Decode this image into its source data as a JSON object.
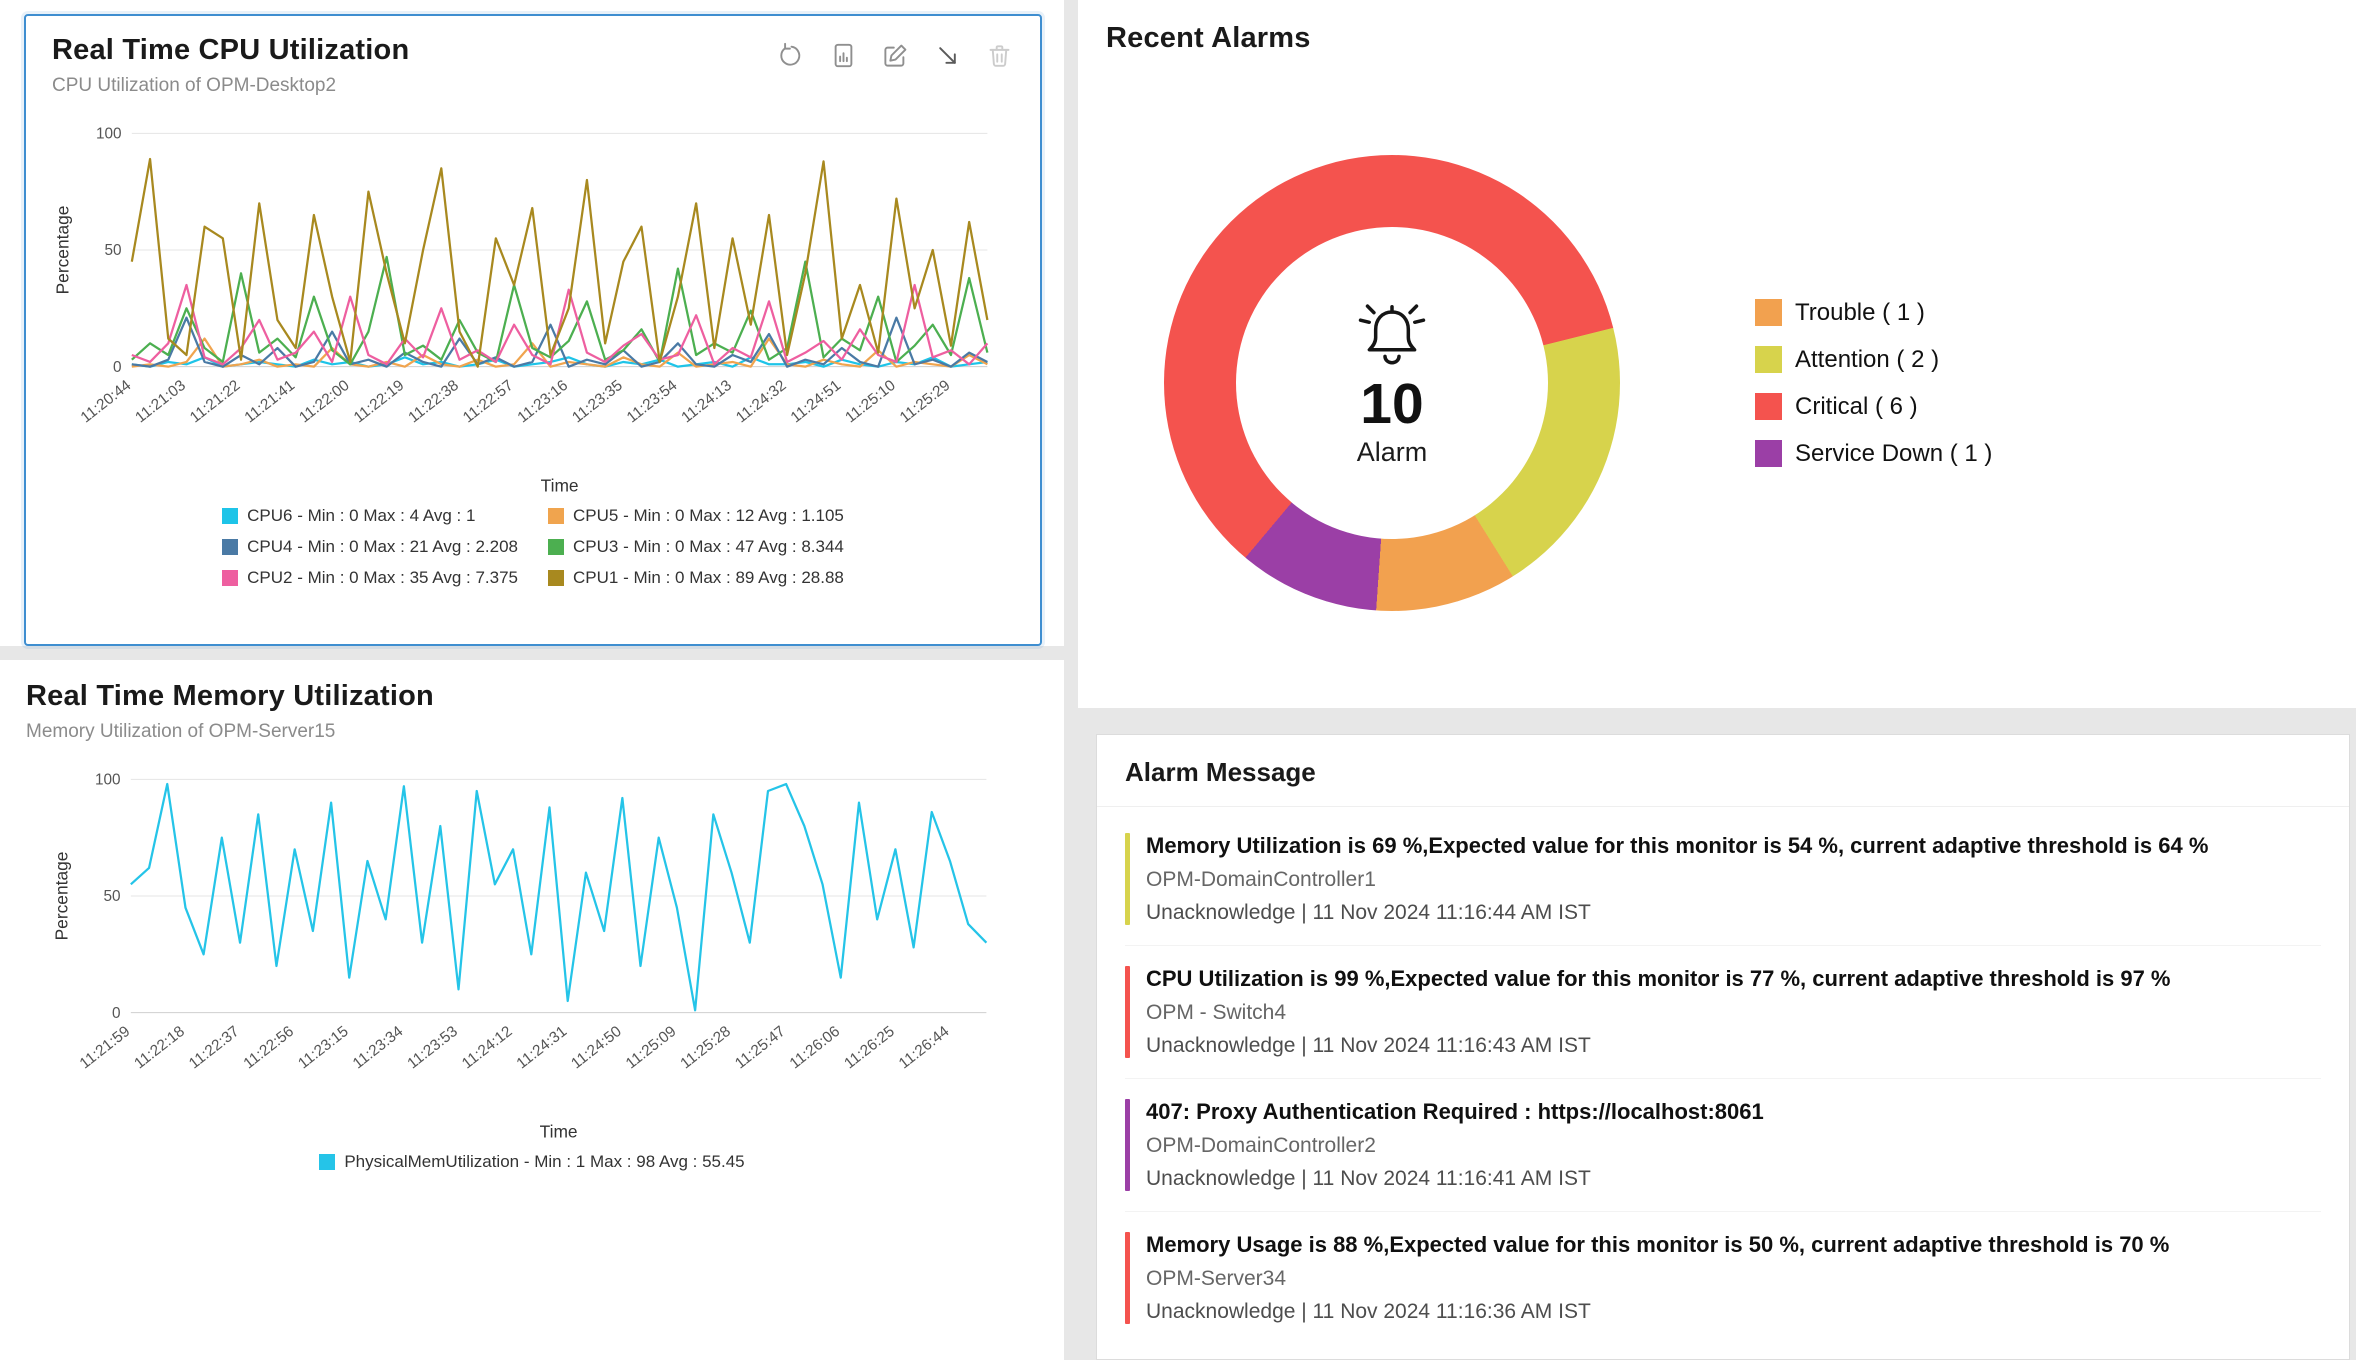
{
  "cpu_widget": {
    "title": "Real Time CPU Utilization",
    "subtitle": "CPU Utilization of OPM-Desktop2",
    "toolbar_icons": [
      "refresh-icon",
      "report-icon",
      "edit-icon",
      "resize-icon",
      "trash-icon"
    ]
  },
  "memory_widget": {
    "title": "Real Time Memory Utilization",
    "subtitle": "Memory Utilization of OPM-Server15"
  },
  "recent_alarms": {
    "title": "Recent Alarms",
    "total": "10",
    "total_label": "Alarm",
    "legend": [
      {
        "label": "Trouble ( 1 )",
        "color": "#f2a14f"
      },
      {
        "label": "Attention ( 2 )",
        "color": "#d7d34c"
      },
      {
        "label": "Critical ( 6 )",
        "color": "#f4534e"
      },
      {
        "label": "Service Down ( 1 )",
        "color": "#9b3fa6"
      }
    ]
  },
  "alarm_panel": {
    "title": "Alarm Message",
    "alarms": [
      {
        "message": "Memory Utilization is 69 %,Expected value for this monitor is 54 %, current adaptive threshold is 64 %",
        "device": "OPM-DomainController1",
        "status": "Unacknowledge | 11 Nov 2024 11:16:44 AM IST",
        "severity_color": "#d7d34c"
      },
      {
        "message": "CPU Utilization is 99 %,Expected value for this monitor is 77 %, current adaptive threshold is 97 %",
        "device": "OPM - Switch4",
        "status": "Unacknowledge | 11 Nov 2024 11:16:43 AM IST",
        "severity_color": "#f4534e"
      },
      {
        "message": "407: Proxy Authentication Required : https://localhost:8061",
        "device": "OPM-DomainController2",
        "status": "Unacknowledge | 11 Nov 2024 11:16:41 AM IST",
        "severity_color": "#9b3fa6"
      },
      {
        "message": "Memory Usage is 88 %,Expected value for this monitor is 50 %, current adaptive threshold is 70 %",
        "device": "OPM-Server34",
        "status": "Unacknowledge | 11 Nov 2024 11:16:36 AM IST",
        "severity_color": "#f4534e"
      }
    ]
  },
  "chart_data": [
    {
      "id": "cpu",
      "type": "line",
      "title": "Real Time CPU Utilization",
      "xlabel": "Time",
      "ylabel": "Percentage",
      "ylim": [
        0,
        100
      ],
      "yticks": [
        0,
        50,
        100
      ],
      "grid": true,
      "legend_position": "bottom",
      "x_ticks": [
        "11:20:44",
        "11:21:03",
        "11:21:22",
        "11:21:41",
        "11:22:00",
        "11:22:19",
        "11:22:38",
        "11:22:57",
        "11:23:16",
        "11:23:35",
        "11:23:54",
        "11:24:13",
        "11:24:32",
        "11:24:51",
        "11:25:10",
        "11:25:29"
      ],
      "series": [
        {
          "name": "CPU6",
          "label": "CPU6 - Min : 0 Max : 4 Avg : 1",
          "color": "#1ec4e8",
          "min": 0,
          "max": 4,
          "avg": 1,
          "values": [
            1,
            0,
            2,
            1,
            4,
            0,
            1,
            2,
            1,
            0,
            3,
            1,
            2,
            0,
            1,
            4,
            1,
            2,
            0,
            1,
            3,
            0,
            1,
            2,
            4,
            1,
            0,
            2,
            1,
            3,
            0,
            1,
            2,
            0,
            4,
            1,
            1,
            2,
            0,
            3,
            1,
            0,
            2,
            1,
            4,
            0,
            1,
            2
          ]
        },
        {
          "name": "CPU5",
          "label": "CPU5 - Min : 0 Max : 12 Avg : 1.105",
          "color": "#f0a44e",
          "min": 0,
          "max": 12,
          "avg": 1.105,
          "values": [
            0,
            1,
            0,
            2,
            12,
            0,
            1,
            3,
            0,
            1,
            0,
            8,
            1,
            0,
            2,
            0,
            5,
            1,
            0,
            3,
            0,
            1,
            10,
            0,
            2,
            1,
            0,
            4,
            1,
            0,
            6,
            0,
            1,
            2,
            0,
            12,
            1,
            0,
            3,
            1,
            0,
            7,
            0,
            2,
            1,
            0,
            5,
            1
          ]
        },
        {
          "name": "CPU4",
          "label": "CPU4 - Min : 0 Max : 21 Avg : 2.208",
          "color": "#4a7aa5",
          "min": 0,
          "max": 21,
          "avg": 2.208,
          "values": [
            1,
            0,
            3,
            21,
            2,
            0,
            5,
            1,
            8,
            0,
            2,
            15,
            1,
            3,
            0,
            6,
            2,
            0,
            12,
            1,
            4,
            0,
            2,
            18,
            0,
            3,
            1,
            7,
            0,
            2,
            10,
            1,
            0,
            5,
            2,
            14,
            0,
            3,
            1,
            8,
            2,
            0,
            21,
            1,
            3,
            0,
            6,
            2
          ]
        },
        {
          "name": "CPU3",
          "label": "CPU3 - Min : 0 Max : 47 Avg : 8.344",
          "color": "#4caf50",
          "min": 0,
          "max": 47,
          "avg": 8.344,
          "values": [
            3,
            10,
            5,
            25,
            8,
            2,
            40,
            6,
            12,
            4,
            30,
            7,
            1,
            15,
            47,
            5,
            9,
            3,
            20,
            6,
            2,
            35,
            8,
            4,
            11,
            28,
            3,
            7,
            16,
            2,
            42,
            5,
            10,
            6,
            24,
            3,
            8,
            45,
            4,
            12,
            7,
            30,
            2,
            9,
            18,
            5,
            38,
            6
          ]
        },
        {
          "name": "CPU2",
          "label": "CPU2 - Min : 0 Max : 35 Avg : 7.375",
          "color": "#ee5fa0",
          "min": 0,
          "max": 35,
          "avg": 7.375,
          "values": [
            5,
            2,
            10,
            35,
            4,
            1,
            8,
            20,
            3,
            6,
            15,
            2,
            30,
            5,
            1,
            12,
            4,
            25,
            3,
            7,
            2,
            18,
            5,
            1,
            33,
            6,
            2,
            9,
            14,
            3,
            5,
            22,
            1,
            8,
            4,
            28,
            2,
            6,
            11,
            3,
            16,
            5,
            2,
            35,
            4,
            7,
            1,
            10
          ]
        },
        {
          "name": "CPU1",
          "label": "CPU1 - Min : 0 Max : 89 Avg : 28.88",
          "color": "#a8891f",
          "min": 0,
          "max": 89,
          "avg": 28.88,
          "values": [
            45,
            89,
            12,
            5,
            60,
            55,
            3,
            70,
            20,
            8,
            65,
            30,
            2,
            75,
            40,
            10,
            50,
            85,
            15,
            0,
            55,
            35,
            68,
            5,
            25,
            80,
            10,
            45,
            60,
            2,
            30,
            70,
            8,
            55,
            18,
            65,
            5,
            40,
            88,
            12,
            35,
            6,
            72,
            25,
            50,
            9,
            62,
            20
          ]
        }
      ]
    },
    {
      "id": "memory",
      "type": "line",
      "title": "Real Time Memory Utilization",
      "xlabel": "Time",
      "ylabel": "Percentage",
      "ylim": [
        0,
        100
      ],
      "yticks": [
        0,
        50,
        100
      ],
      "grid": true,
      "legend_position": "bottom",
      "x_ticks": [
        "11:21:59",
        "11:22:18",
        "11:22:37",
        "11:22:56",
        "11:23:15",
        "11:23:34",
        "11:23:53",
        "11:24:12",
        "11:24:31",
        "11:24:50",
        "11:25:09",
        "11:25:28",
        "11:25:47",
        "11:26:06",
        "11:26:25",
        "11:26:44"
      ],
      "series": [
        {
          "name": "PhysicalMemUtilization",
          "label": "PhysicalMemUtilization - Min : 1 Max : 98 Avg : 55.45",
          "color": "#25c4e8",
          "min": 1,
          "max": 98,
          "avg": 55.45,
          "values": [
            55,
            62,
            98,
            45,
            25,
            75,
            30,
            85,
            20,
            70,
            35,
            90,
            15,
            65,
            40,
            97,
            30,
            80,
            10,
            95,
            55,
            70,
            25,
            88,
            5,
            60,
            35,
            92,
            20,
            75,
            45,
            1,
            85,
            60,
            30,
            95,
            98,
            80,
            55,
            15,
            90,
            40,
            70,
            28,
            86,
            65,
            38,
            30
          ]
        }
      ]
    },
    {
      "id": "alarms-donut",
      "type": "pie",
      "title": "Recent Alarms",
      "categories": [
        "Trouble",
        "Attention",
        "Critical",
        "Service Down"
      ],
      "values": [
        1,
        2,
        6,
        1
      ],
      "colors": [
        "#f2a14f",
        "#d7d34c",
        "#f4534e",
        "#9b3fa6"
      ],
      "center_value": 10,
      "center_label": "Alarm",
      "draw_order": [
        2,
        1,
        0,
        3
      ],
      "start_angle": 220,
      "legend_position": "right"
    }
  ]
}
